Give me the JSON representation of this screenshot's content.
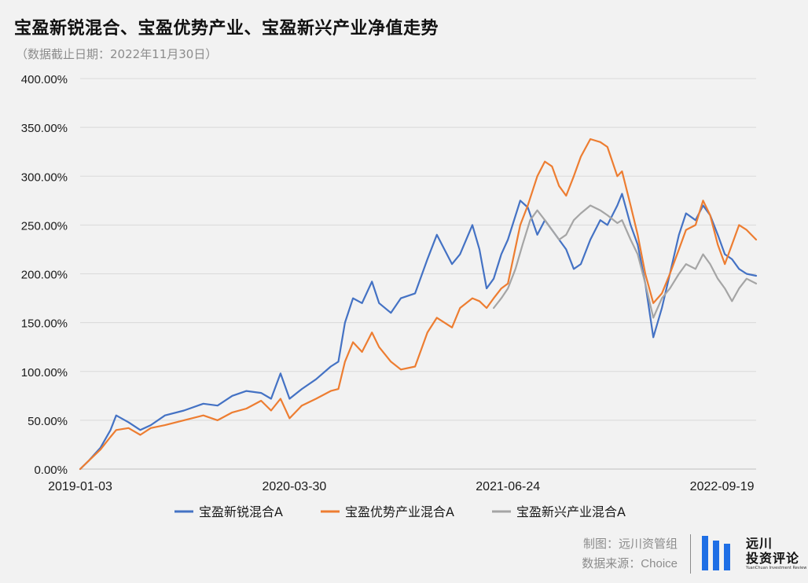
{
  "header": {
    "title": "宝盈新锐混合、宝盈优势产业、宝盈新兴产业净值走势",
    "subtitle": "（数据截止日期：2022年11月30日）"
  },
  "footer": {
    "maker": "制图：远川资管组",
    "source": "数据来源：Choice"
  },
  "logo": {
    "name_line1": "远川",
    "name_line2": "投资评论",
    "tagline": "YuanChuan Investment Review"
  },
  "chart_data": {
    "type": "line",
    "title": "宝盈新锐混合、宝盈优势产业、宝盈新兴产业净值走势",
    "subtitle": "（数据截止日期：2022年11月30日）",
    "ylim": [
      0,
      400
    ],
    "y_unit": "%",
    "yticks": [
      "0.00%",
      "50.00%",
      "100.00%",
      "150.00%",
      "200.00%",
      "250.00%",
      "300.00%",
      "350.00%",
      "400.00%"
    ],
    "xlim": [
      "2019-01-03",
      "2022-11-30"
    ],
    "xticks": [
      "2019-01-03",
      "2020-03-30",
      "2021-06-24",
      "2022-09-19"
    ],
    "grid": "horizontal",
    "legend": "bottom",
    "series": [
      {
        "name": "宝盈新锐混合A",
        "color": "#4472c4",
        "points": [
          [
            "2019-01-03",
            0
          ],
          [
            "2019-01-20",
            8
          ],
          [
            "2019-02-15",
            22
          ],
          [
            "2019-03-08",
            40
          ],
          [
            "2019-03-20",
            55
          ],
          [
            "2019-04-15",
            48
          ],
          [
            "2019-05-10",
            40
          ],
          [
            "2019-06-01",
            45
          ],
          [
            "2019-07-01",
            55
          ],
          [
            "2019-08-10",
            60
          ],
          [
            "2019-09-20",
            67
          ],
          [
            "2019-10-20",
            65
          ],
          [
            "2019-11-20",
            75
          ],
          [
            "2019-12-20",
            80
          ],
          [
            "2020-01-20",
            78
          ],
          [
            "2020-02-10",
            72
          ],
          [
            "2020-03-01",
            98
          ],
          [
            "2020-03-20",
            72
          ],
          [
            "2020-04-15",
            82
          ],
          [
            "2020-05-15",
            92
          ],
          [
            "2020-06-15",
            105
          ],
          [
            "2020-07-01",
            110
          ],
          [
            "2020-07-15",
            150
          ],
          [
            "2020-08-01",
            175
          ],
          [
            "2020-08-20",
            170
          ],
          [
            "2020-09-10",
            192
          ],
          [
            "2020-09-25",
            170
          ],
          [
            "2020-10-20",
            160
          ],
          [
            "2020-11-10",
            175
          ],
          [
            "2020-12-10",
            180
          ],
          [
            "2021-01-05",
            215
          ],
          [
            "2021-01-25",
            240
          ],
          [
            "2021-02-10",
            225
          ],
          [
            "2021-02-26",
            210
          ],
          [
            "2021-03-15",
            220
          ],
          [
            "2021-04-10",
            250
          ],
          [
            "2021-04-25",
            225
          ],
          [
            "2021-05-10",
            185
          ],
          [
            "2021-05-25",
            195
          ],
          [
            "2021-06-10",
            220
          ],
          [
            "2021-06-24",
            235
          ],
          [
            "2021-07-20",
            275
          ],
          [
            "2021-08-05",
            268
          ],
          [
            "2021-08-25",
            240
          ],
          [
            "2021-09-10",
            255
          ],
          [
            "2021-09-25",
            245
          ],
          [
            "2021-10-10",
            235
          ],
          [
            "2021-10-25",
            225
          ],
          [
            "2021-11-10",
            205
          ],
          [
            "2021-11-25",
            210
          ],
          [
            "2021-12-15",
            235
          ],
          [
            "2022-01-05",
            255
          ],
          [
            "2022-01-20",
            250
          ],
          [
            "2022-02-10",
            270
          ],
          [
            "2022-02-20",
            282
          ],
          [
            "2022-03-10",
            250
          ],
          [
            "2022-03-25",
            230
          ],
          [
            "2022-04-10",
            190
          ],
          [
            "2022-04-27",
            135
          ],
          [
            "2022-05-15",
            165
          ],
          [
            "2022-06-01",
            200
          ],
          [
            "2022-06-20",
            240
          ],
          [
            "2022-07-05",
            262
          ],
          [
            "2022-07-25",
            255
          ],
          [
            "2022-08-10",
            270
          ],
          [
            "2022-08-25",
            260
          ],
          [
            "2022-09-10",
            240
          ],
          [
            "2022-09-25",
            220
          ],
          [
            "2022-10-10",
            215
          ],
          [
            "2022-10-25",
            205
          ],
          [
            "2022-11-10",
            200
          ],
          [
            "2022-11-30",
            198
          ]
        ]
      },
      {
        "name": "宝盈优势产业混合A",
        "color": "#ed7d31",
        "points": [
          [
            "2019-01-03",
            0
          ],
          [
            "2019-01-20",
            8
          ],
          [
            "2019-02-15",
            20
          ],
          [
            "2019-03-08",
            33
          ],
          [
            "2019-03-20",
            40
          ],
          [
            "2019-04-15",
            42
          ],
          [
            "2019-05-10",
            35
          ],
          [
            "2019-06-01",
            42
          ],
          [
            "2019-07-01",
            45
          ],
          [
            "2019-08-10",
            50
          ],
          [
            "2019-09-20",
            55
          ],
          [
            "2019-10-20",
            50
          ],
          [
            "2019-11-20",
            58
          ],
          [
            "2019-12-20",
            62
          ],
          [
            "2020-01-20",
            70
          ],
          [
            "2020-02-10",
            60
          ],
          [
            "2020-03-01",
            72
          ],
          [
            "2020-03-20",
            52
          ],
          [
            "2020-04-15",
            65
          ],
          [
            "2020-05-15",
            72
          ],
          [
            "2020-06-15",
            80
          ],
          [
            "2020-07-01",
            82
          ],
          [
            "2020-07-15",
            110
          ],
          [
            "2020-08-01",
            130
          ],
          [
            "2020-08-20",
            120
          ],
          [
            "2020-09-10",
            140
          ],
          [
            "2020-09-25",
            125
          ],
          [
            "2020-10-20",
            110
          ],
          [
            "2020-11-10",
            102
          ],
          [
            "2020-12-10",
            105
          ],
          [
            "2021-01-05",
            140
          ],
          [
            "2021-01-25",
            155
          ],
          [
            "2021-02-10",
            150
          ],
          [
            "2021-02-26",
            145
          ],
          [
            "2021-03-15",
            165
          ],
          [
            "2021-04-10",
            175
          ],
          [
            "2021-04-25",
            172
          ],
          [
            "2021-05-10",
            165
          ],
          [
            "2021-05-25",
            175
          ],
          [
            "2021-06-10",
            185
          ],
          [
            "2021-06-24",
            190
          ],
          [
            "2021-07-20",
            250
          ],
          [
            "2021-08-05",
            270
          ],
          [
            "2021-08-25",
            300
          ],
          [
            "2021-09-10",
            315
          ],
          [
            "2021-09-25",
            310
          ],
          [
            "2021-10-10",
            290
          ],
          [
            "2021-10-25",
            280
          ],
          [
            "2021-11-10",
            300
          ],
          [
            "2021-11-25",
            320
          ],
          [
            "2021-12-15",
            338
          ],
          [
            "2022-01-05",
            335
          ],
          [
            "2022-01-20",
            330
          ],
          [
            "2022-02-10",
            300
          ],
          [
            "2022-02-20",
            305
          ],
          [
            "2022-03-10",
            270
          ],
          [
            "2022-03-25",
            240
          ],
          [
            "2022-04-10",
            200
          ],
          [
            "2022-04-27",
            170
          ],
          [
            "2022-05-15",
            180
          ],
          [
            "2022-06-01",
            200
          ],
          [
            "2022-06-20",
            225
          ],
          [
            "2022-07-05",
            245
          ],
          [
            "2022-07-25",
            250
          ],
          [
            "2022-08-10",
            275
          ],
          [
            "2022-08-25",
            260
          ],
          [
            "2022-09-10",
            230
          ],
          [
            "2022-09-25",
            210
          ],
          [
            "2022-10-10",
            230
          ],
          [
            "2022-10-25",
            250
          ],
          [
            "2022-11-10",
            245
          ],
          [
            "2022-11-30",
            235
          ]
        ]
      },
      {
        "name": "宝盈新兴产业混合A",
        "color": "#a5a5a5",
        "points": [
          [
            "2021-05-25",
            165
          ],
          [
            "2021-06-10",
            175
          ],
          [
            "2021-06-24",
            185
          ],
          [
            "2021-07-10",
            205
          ],
          [
            "2021-07-25",
            230
          ],
          [
            "2021-08-10",
            255
          ],
          [
            "2021-08-25",
            265
          ],
          [
            "2021-09-10",
            255
          ],
          [
            "2021-09-25",
            245
          ],
          [
            "2021-10-10",
            235
          ],
          [
            "2021-10-25",
            240
          ],
          [
            "2021-11-10",
            255
          ],
          [
            "2021-11-25",
            262
          ],
          [
            "2021-12-15",
            270
          ],
          [
            "2022-01-05",
            265
          ],
          [
            "2022-01-20",
            260
          ],
          [
            "2022-02-10",
            252
          ],
          [
            "2022-02-20",
            255
          ],
          [
            "2022-03-10",
            235
          ],
          [
            "2022-03-25",
            220
          ],
          [
            "2022-04-10",
            190
          ],
          [
            "2022-04-27",
            155
          ],
          [
            "2022-05-15",
            175
          ],
          [
            "2022-06-01",
            185
          ],
          [
            "2022-06-20",
            200
          ],
          [
            "2022-07-05",
            210
          ],
          [
            "2022-07-25",
            205
          ],
          [
            "2022-08-10",
            220
          ],
          [
            "2022-08-25",
            210
          ],
          [
            "2022-09-10",
            195
          ],
          [
            "2022-09-25",
            185
          ],
          [
            "2022-10-10",
            172
          ],
          [
            "2022-10-25",
            185
          ],
          [
            "2022-11-10",
            195
          ],
          [
            "2022-11-30",
            190
          ]
        ]
      }
    ]
  }
}
